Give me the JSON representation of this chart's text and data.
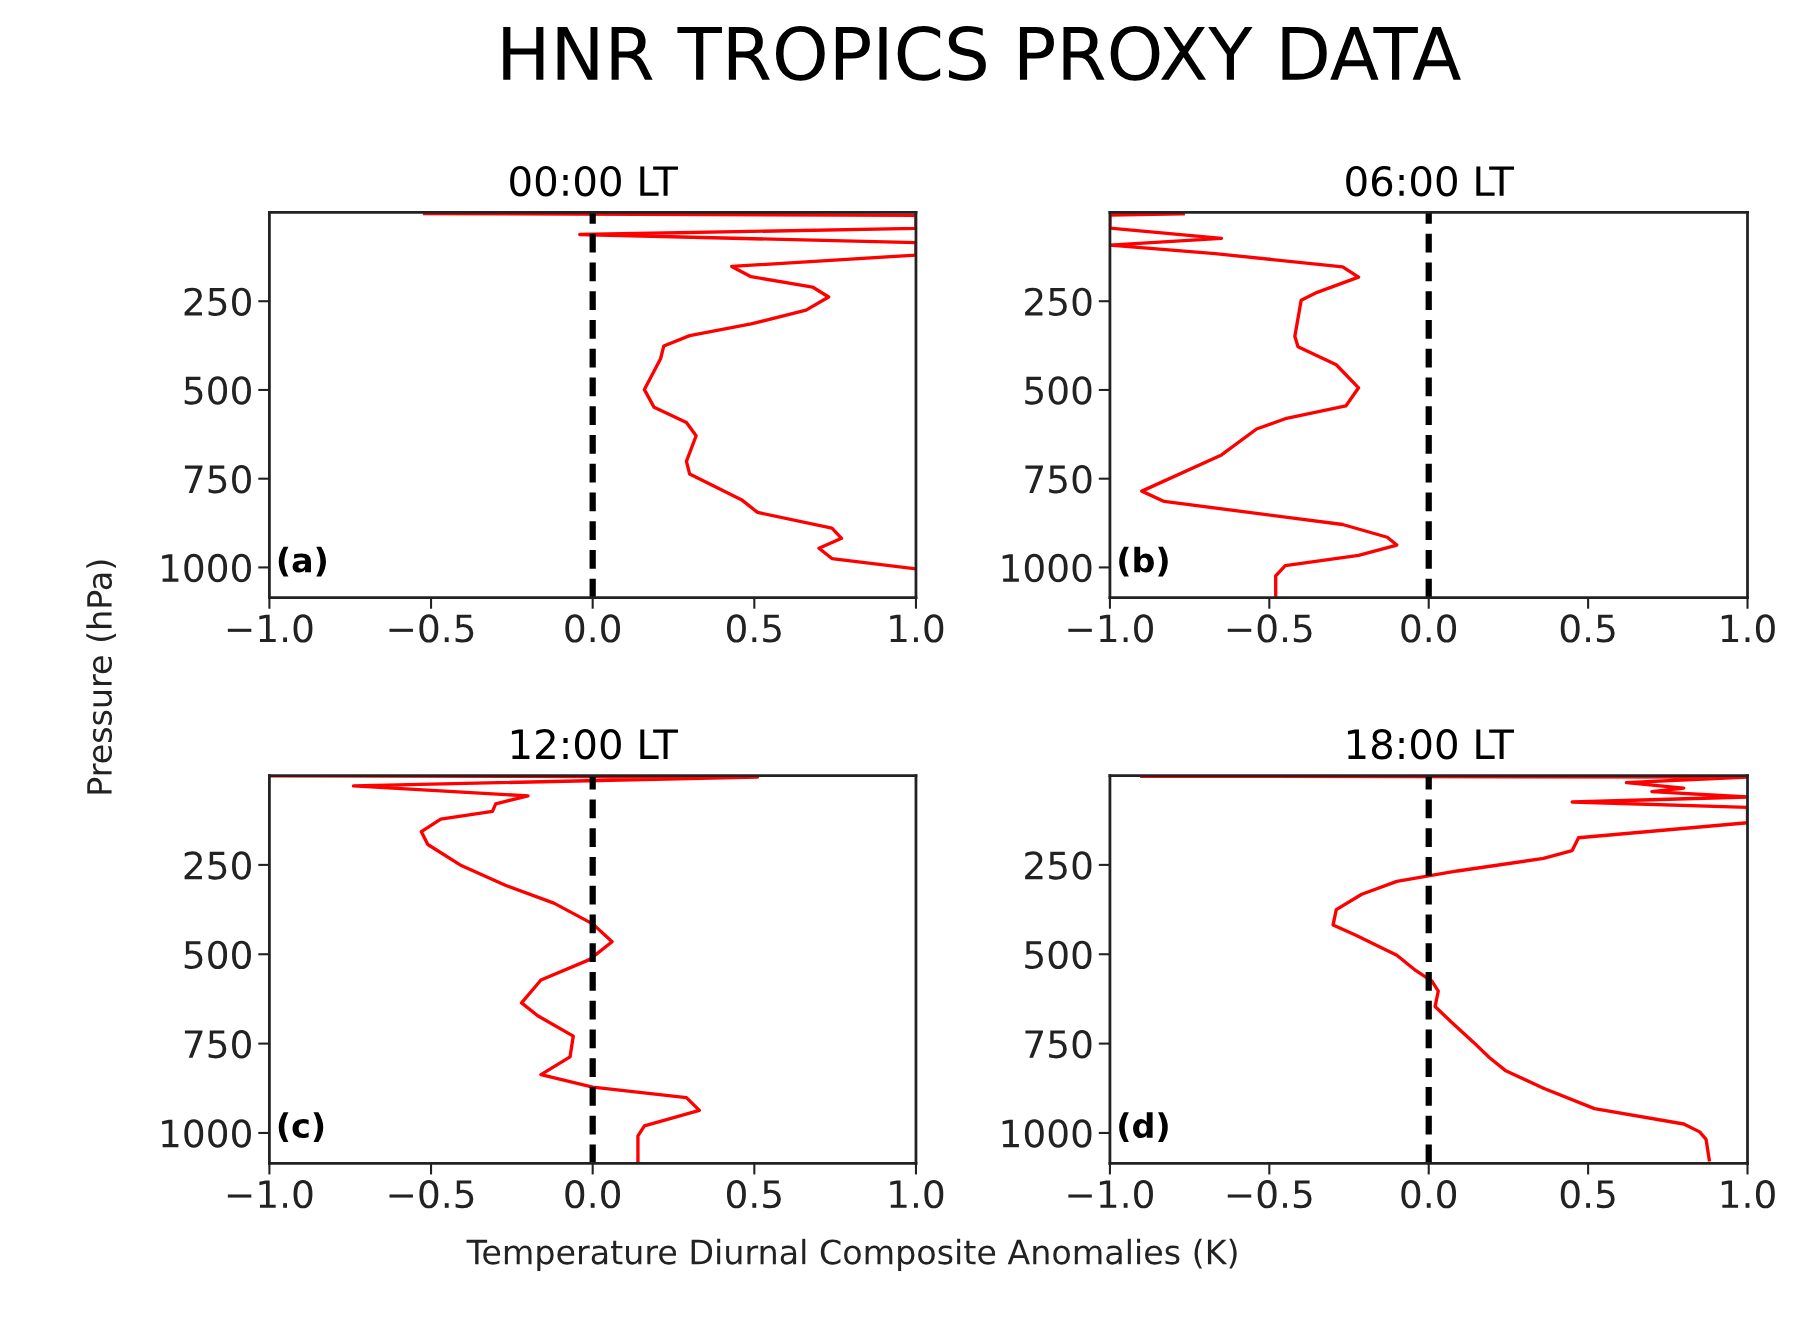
{
  "chart_data": [
    {
      "type": "line",
      "title": "00:00 LT",
      "ylabel": "Pressure (hPa)",
      "annotations": [
        "(a)",
        "HNR TROPICS PROXY DATA"
      ],
      "xlim": [
        -1.0,
        1.0
      ],
      "xticks": [
        {
          "value": -1.0,
          "label": "−1.0"
        },
        {
          "value": -0.5,
          "label": "−0.5"
        },
        {
          "value": 0.0,
          "label": "0.0"
        },
        {
          "value": 0.5,
          "label": "0.5"
        },
        {
          "value": 1.0,
          "label": "1.0"
        }
      ],
      "ylim": [
        1085,
        0
      ],
      "yticks": [
        250,
        500,
        750,
        1000
      ],
      "line_style": "solid",
      "ref_lines": [
        {
          "axis": "x",
          "value": 0,
          "color": "#000000",
          "line_style": "dashed"
        }
      ],
      "series": [
        {
          "color": "#ff0000",
          "x": [
            -0.52,
            1.0,
            1.0,
            -0.04,
            1.0,
            1.0,
            0.43,
            0.49,
            0.68,
            0.73,
            0.66,
            0.49,
            0.3,
            0.22,
            0.21,
            0.16,
            0.19,
            0.29,
            0.32,
            0.29,
            0.3,
            0.46,
            0.51,
            0.74,
            0.77,
            0.7,
            0.74,
            1.0
          ],
          "values": [
            3,
            8,
            45,
            62,
            85,
            120,
            152,
            181,
            210,
            238,
            275,
            314,
            347,
            376,
            412,
            499,
            549,
            592,
            629,
            701,
            737,
            809,
            845,
            889,
            918,
            946,
            975,
            1004
          ]
        }
      ]
    },
    {
      "type": "line",
      "title": "06:00 LT",
      "annotations": [
        "(b)"
      ],
      "xlim": [
        -1.0,
        1.0
      ],
      "xticks": [
        {
          "value": -1.0,
          "label": "−1.0"
        },
        {
          "value": -0.5,
          "label": "−0.5"
        },
        {
          "value": 0.0,
          "label": "0.0"
        },
        {
          "value": 0.5,
          "label": "0.5"
        },
        {
          "value": 1.0,
          "label": "1.0"
        }
      ],
      "ylim": [
        1085,
        0
      ],
      "yticks": [
        250,
        500,
        750,
        1000
      ],
      "line_style": "solid",
      "ref_lines": [
        {
          "axis": "x",
          "value": 0,
          "color": "#000000",
          "line_style": "dashed"
        }
      ],
      "series": [
        {
          "color": "#ff0000",
          "x": [
            -0.77,
            -1.0,
            -1.0,
            -0.65,
            -1.0,
            -0.67,
            -0.27,
            -0.22,
            -0.35,
            -0.4,
            -0.42,
            -0.41,
            -0.29,
            -0.22,
            -0.26,
            -0.45,
            -0.54,
            -0.65,
            -0.9,
            -0.83,
            -0.27,
            -0.13,
            -0.1,
            -0.22,
            -0.45,
            -0.48,
            -0.48
          ],
          "values": [
            4,
            7,
            44,
            73,
            92,
            116,
            153,
            182,
            225,
            247,
            349,
            378,
            429,
            494,
            545,
            581,
            610,
            683,
            785,
            814,
            879,
            915,
            937,
            966,
            995,
            1024,
            1085
          ]
        }
      ]
    },
    {
      "type": "line",
      "title": "12:00 LT",
      "xlabel": "Temperature Diurnal Composite Anomalies (K)",
      "annotations": [
        "(c)"
      ],
      "xlim": [
        -1.0,
        1.0
      ],
      "xticks": [
        {
          "value": -1.0,
          "label": "−1.0"
        },
        {
          "value": -0.5,
          "label": "−0.5"
        },
        {
          "value": 0.0,
          "label": "0.0"
        },
        {
          "value": 0.5,
          "label": "0.5"
        },
        {
          "value": 1.0,
          "label": "1.0"
        }
      ],
      "ylim": [
        1085,
        0
      ],
      "yticks": [
        250,
        500,
        750,
        1000
      ],
      "line_style": "solid",
      "ref_lines": [
        {
          "axis": "x",
          "value": 0,
          "color": "#000000",
          "line_style": "dashed"
        }
      ],
      "series": [
        {
          "color": "#ff0000",
          "x": [
            -1.0,
            0.51,
            -0.74,
            -0.2,
            -0.3,
            -0.31,
            -0.47,
            -0.53,
            -0.51,
            -0.41,
            -0.27,
            -0.12,
            0.0,
            0.06,
            -0.01,
            -0.16,
            -0.22,
            -0.17,
            -0.06,
            -0.07,
            -0.16,
            0.0,
            0.29,
            0.33,
            0.16,
            0.14,
            0.14
          ],
          "values": [
            1,
            4,
            29,
            57,
            79,
            100,
            122,
            157,
            193,
            250,
            307,
            357,
            415,
            465,
            515,
            572,
            636,
            672,
            729,
            787,
            837,
            872,
            901,
            937,
            980,
            1008,
            1080
          ]
        }
      ]
    },
    {
      "type": "line",
      "title": "18:00 LT",
      "annotations": [
        "(d)"
      ],
      "xlim": [
        -1.0,
        1.0
      ],
      "xticks": [
        {
          "value": -1.0,
          "label": "−1.0"
        },
        {
          "value": -0.5,
          "label": "−0.5"
        },
        {
          "value": 0.0,
          "label": "0.0"
        },
        {
          "value": 0.5,
          "label": "0.5"
        },
        {
          "value": 1.0,
          "label": "1.0"
        }
      ],
      "ylim": [
        1085,
        0
      ],
      "yticks": [
        250,
        500,
        750,
        1000
      ],
      "line_style": "solid",
      "ref_lines": [
        {
          "axis": "x",
          "value": 0,
          "color": "#000000",
          "line_style": "dashed"
        }
      ],
      "series": [
        {
          "color": "#ff0000",
          "x": [
            -0.9,
            1.0,
            0.62,
            0.8,
            0.7,
            1.0,
            0.45,
            1.0,
            1.0,
            0.47,
            0.45,
            0.36,
            0.09,
            -0.1,
            -0.21,
            -0.29,
            -0.3,
            -0.23,
            -0.1,
            -0.04,
            0.01,
            0.03,
            0.02,
            0.07,
            0.14,
            0.19,
            0.24,
            0.36,
            0.52,
            0.8,
            0.85,
            0.87,
            0.88
          ],
          "values": [
            2,
            4,
            20,
            35,
            45,
            60,
            74,
            89,
            132,
            174,
            210,
            232,
            267,
            296,
            332,
            375,
            418,
            446,
            503,
            546,
            575,
            603,
            646,
            689,
            746,
            789,
            825,
            875,
            932,
            975,
            997,
            1018,
            1075
          ]
        }
      ]
    }
  ]
}
